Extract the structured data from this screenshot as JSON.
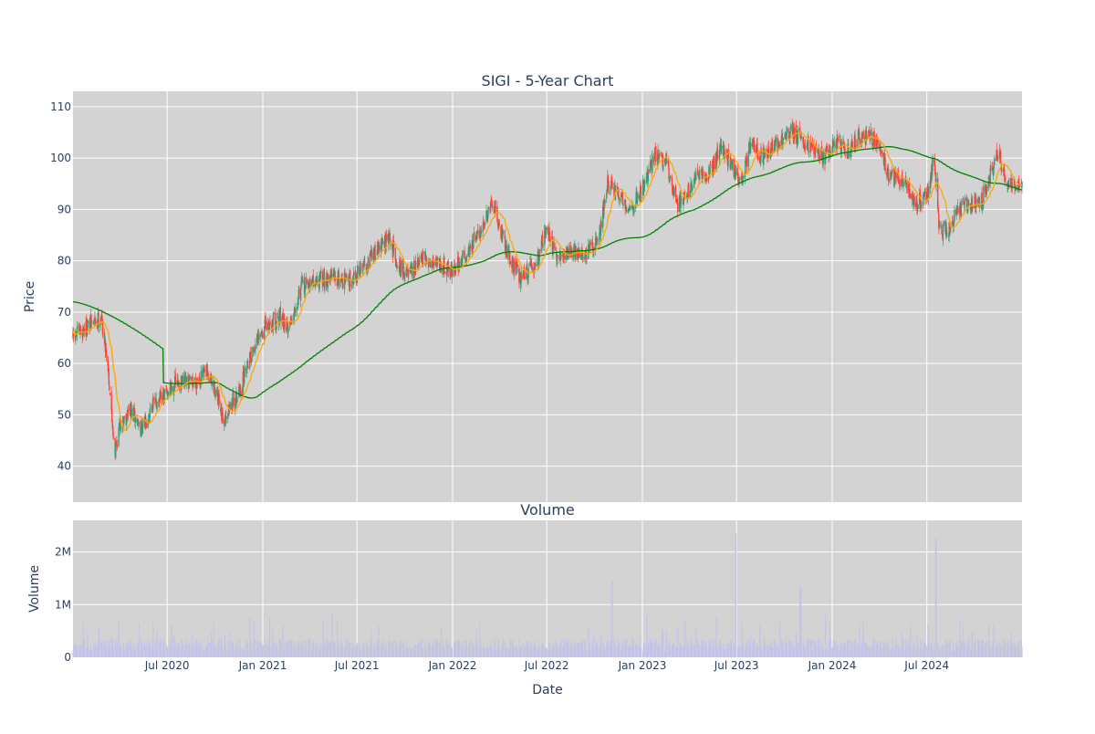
{
  "chart_data": {
    "type": "candlestick",
    "title": "SIGI - 5-Year Chart",
    "subplot_titles": [
      "",
      "Volume"
    ],
    "xlabel": "Date",
    "price_panel": {
      "ylabel": "Price",
      "ylim": [
        33,
        113
      ],
      "yticks": [
        40,
        50,
        60,
        70,
        80,
        90,
        100,
        110
      ],
      "up_color": "#3d9970",
      "down_color": "#ff4136",
      "ma_short_color": "#ffa500",
      "ma_long_color": "#008000",
      "anchors": [
        [
          "2020-01-02",
          65
        ],
        [
          "2020-02-10",
          68
        ],
        [
          "2020-02-25",
          69
        ],
        [
          "2020-03-09",
          60
        ],
        [
          "2020-03-16",
          50
        ],
        [
          "2020-03-23",
          43
        ],
        [
          "2020-04-01",
          48
        ],
        [
          "2020-04-20",
          51
        ],
        [
          "2020-05-15",
          47
        ],
        [
          "2020-06-01",
          52
        ],
        [
          "2020-06-20",
          53
        ],
        [
          "2020-07-15",
          56
        ],
        [
          "2020-08-15",
          56
        ],
        [
          "2020-09-15",
          58
        ],
        [
          "2020-10-01",
          55
        ],
        [
          "2020-10-15",
          49
        ],
        [
          "2020-11-01",
          52
        ],
        [
          "2020-11-20",
          55
        ],
        [
          "2020-12-01",
          60
        ],
        [
          "2020-12-20",
          64
        ],
        [
          "2021-01-05",
          67
        ],
        [
          "2021-02-01",
          69
        ],
        [
          "2021-02-20",
          67
        ],
        [
          "2021-03-15",
          75
        ],
        [
          "2021-04-15",
          76
        ],
        [
          "2021-05-15",
          77
        ],
        [
          "2021-06-15",
          76
        ],
        [
          "2021-07-15",
          79
        ],
        [
          "2021-08-15",
          83
        ],
        [
          "2021-09-01",
          84
        ],
        [
          "2021-09-20",
          79
        ],
        [
          "2021-10-10",
          77
        ],
        [
          "2021-11-01",
          80
        ],
        [
          "2021-12-01",
          80
        ],
        [
          "2022-01-01",
          78
        ],
        [
          "2022-02-01",
          82
        ],
        [
          "2022-03-01",
          87
        ],
        [
          "2022-03-20",
          91
        ],
        [
          "2022-04-15",
          82
        ],
        [
          "2022-05-10",
          77
        ],
        [
          "2022-06-10",
          79
        ],
        [
          "2022-07-01",
          87
        ],
        [
          "2022-07-20",
          80
        ],
        [
          "2022-08-15",
          82
        ],
        [
          "2022-09-15",
          81
        ],
        [
          "2022-10-10",
          85
        ],
        [
          "2022-10-25",
          95
        ],
        [
          "2022-11-15",
          93
        ],
        [
          "2022-12-10",
          90
        ],
        [
          "2023-01-10",
          96
        ],
        [
          "2023-01-25",
          101
        ],
        [
          "2023-02-15",
          99
        ],
        [
          "2023-03-10",
          91
        ],
        [
          "2023-04-15",
          96
        ],
        [
          "2023-05-10",
          97
        ],
        [
          "2023-06-01",
          102
        ],
        [
          "2023-06-20",
          99
        ],
        [
          "2023-07-10",
          95
        ],
        [
          "2023-07-28",
          103
        ],
        [
          "2023-08-20",
          100
        ],
        [
          "2023-09-20",
          103
        ],
        [
          "2023-10-15",
          105
        ],
        [
          "2023-11-15",
          103
        ],
        [
          "2023-12-15",
          100
        ],
        [
          "2024-01-10",
          103
        ],
        [
          "2024-02-01",
          101
        ],
        [
          "2024-02-20",
          104
        ],
        [
          "2024-03-15",
          104
        ],
        [
          "2024-04-01",
          103
        ],
        [
          "2024-04-20",
          96
        ],
        [
          "2024-05-15",
          96
        ],
        [
          "2024-06-10",
          91
        ],
        [
          "2024-07-01",
          93
        ],
        [
          "2024-07-15",
          100
        ],
        [
          "2024-07-25",
          86
        ],
        [
          "2024-08-10",
          86
        ],
        [
          "2024-08-25",
          89
        ],
        [
          "2024-09-15",
          91
        ],
        [
          "2024-10-15",
          92
        ],
        [
          "2024-11-01",
          97
        ],
        [
          "2024-11-15",
          101
        ],
        [
          "2024-12-01",
          95
        ],
        [
          "2024-12-31",
          94
        ]
      ]
    },
    "volume_panel": {
      "title": "Volume",
      "ylabel": "Volume",
      "ylim": [
        0,
        2600000
      ],
      "yticks": [
        0,
        1000000,
        2000000
      ],
      "ytick_labels": [
        "0",
        "1M",
        "2M"
      ],
      "bar_color": "#c3c3e6",
      "spikes": [
        [
          "2022-11-04",
          1450000
        ],
        [
          "2023-06-30",
          2350000
        ],
        [
          "2023-11-01",
          1350000
        ],
        [
          "2024-07-19",
          2250000
        ]
      ]
    },
    "x_range": [
      "2020-01-02",
      "2024-12-31"
    ],
    "x_tick_labels": [
      [
        "2020-07-01",
        "Jul 2020"
      ],
      [
        "2021-01-01",
        "Jan 2021"
      ],
      [
        "2021-07-01",
        "Jul 2021"
      ],
      [
        "2022-01-01",
        "Jan 2022"
      ],
      [
        "2022-07-01",
        "Jul 2022"
      ],
      [
        "2023-01-01",
        "Jan 2023"
      ],
      [
        "2023-07-01",
        "Jul 2023"
      ],
      [
        "2024-01-01",
        "Jan 2024"
      ],
      [
        "2024-07-01",
        "Jul 2024"
      ]
    ],
    "grid": true,
    "legend": "none"
  }
}
